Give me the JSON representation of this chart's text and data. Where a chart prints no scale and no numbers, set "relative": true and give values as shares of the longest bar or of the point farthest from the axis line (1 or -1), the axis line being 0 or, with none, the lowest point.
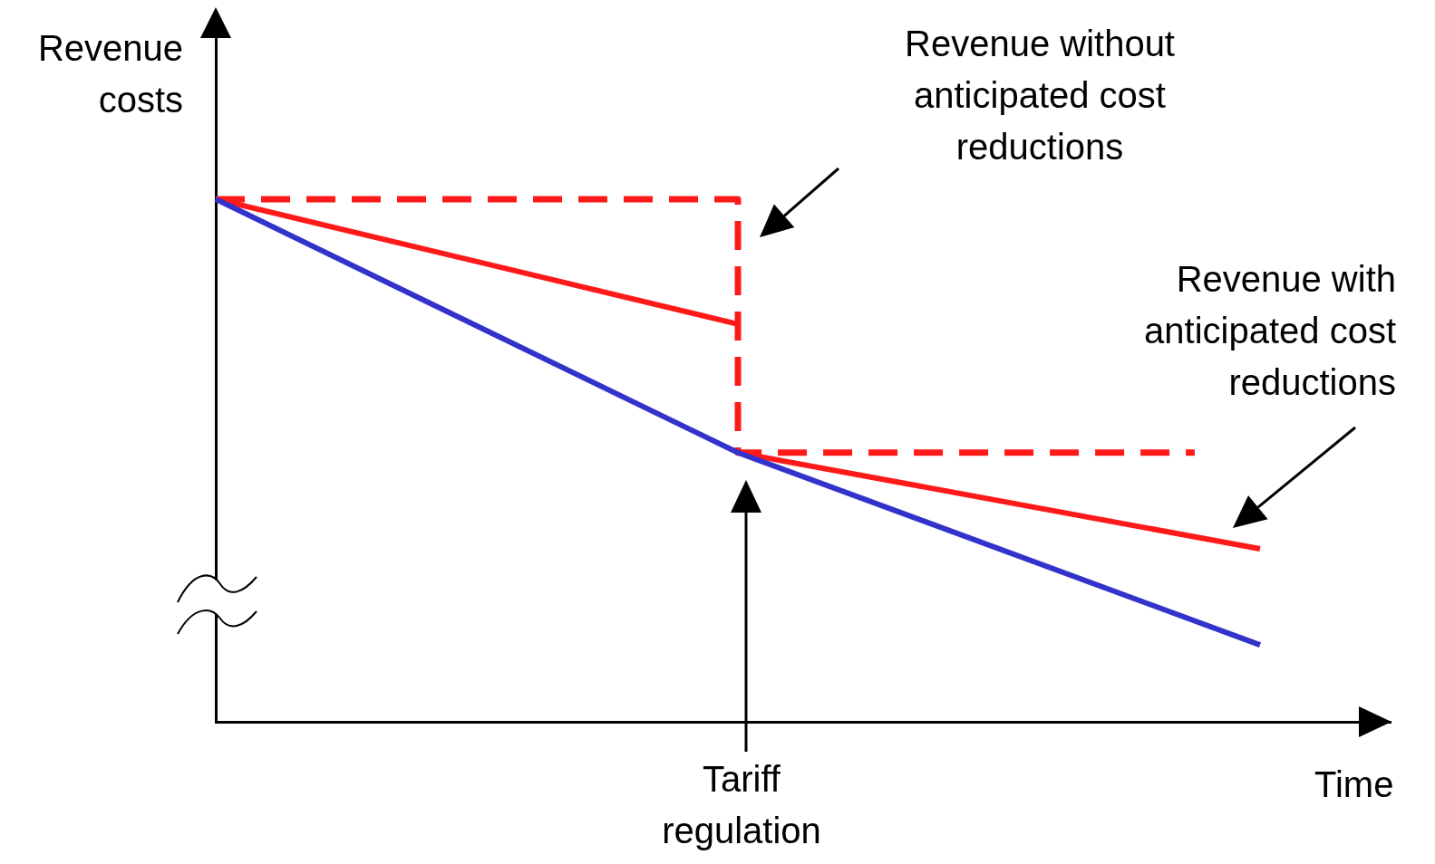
{
  "chart_data": {
    "type": "line",
    "relative": true,
    "xlabel": "Time",
    "ylabel": "Revenue\ncosts",
    "categories": [
      null,
      null,
      null,
      null,
      null,
      null,
      null,
      null,
      null,
      null,
      null,
      null,
      null,
      null,
      null,
      null,
      null,
      null,
      null
    ],
    "series": [
      {
        "color": "#3333cc",
        "values": [
          1,
          null,
          null,
          null,
          null,
          null,
          null,
          null,
          0.515,
          null,
          null,
          null,
          null,
          null,
          null,
          null,
          0.147,
          null,
          null
        ]
      },
      {
        "color": "#ff1a1a",
        "values": [
          1,
          null,
          null,
          null,
          null,
          null,
          null,
          null,
          0.761,
          null,
          null,
          null,
          null,
          null,
          null,
          null,
          null,
          null,
          null
        ]
      },
      {
        "color": "#ff1a1a",
        "values": [
          null,
          null,
          null,
          null,
          null,
          null,
          null,
          null,
          0.515,
          null,
          null,
          null,
          null,
          null,
          null,
          null,
          0.331,
          null,
          null
        ]
      },
      {
        "type": "step",
        "line_style": "dashed",
        "color": "#ff1a1a",
        "values": [
          1,
          null,
          null,
          null,
          null,
          null,
          null,
          null,
          0.515,
          null,
          null,
          null,
          null,
          null,
          null,
          0.515,
          null,
          null,
          null
        ]
      }
    ],
    "annotations": [
      "Revenue without anticipated cost reductions",
      "Revenue with anticipated cost reductions",
      "Tariff regulation"
    ]
  }
}
